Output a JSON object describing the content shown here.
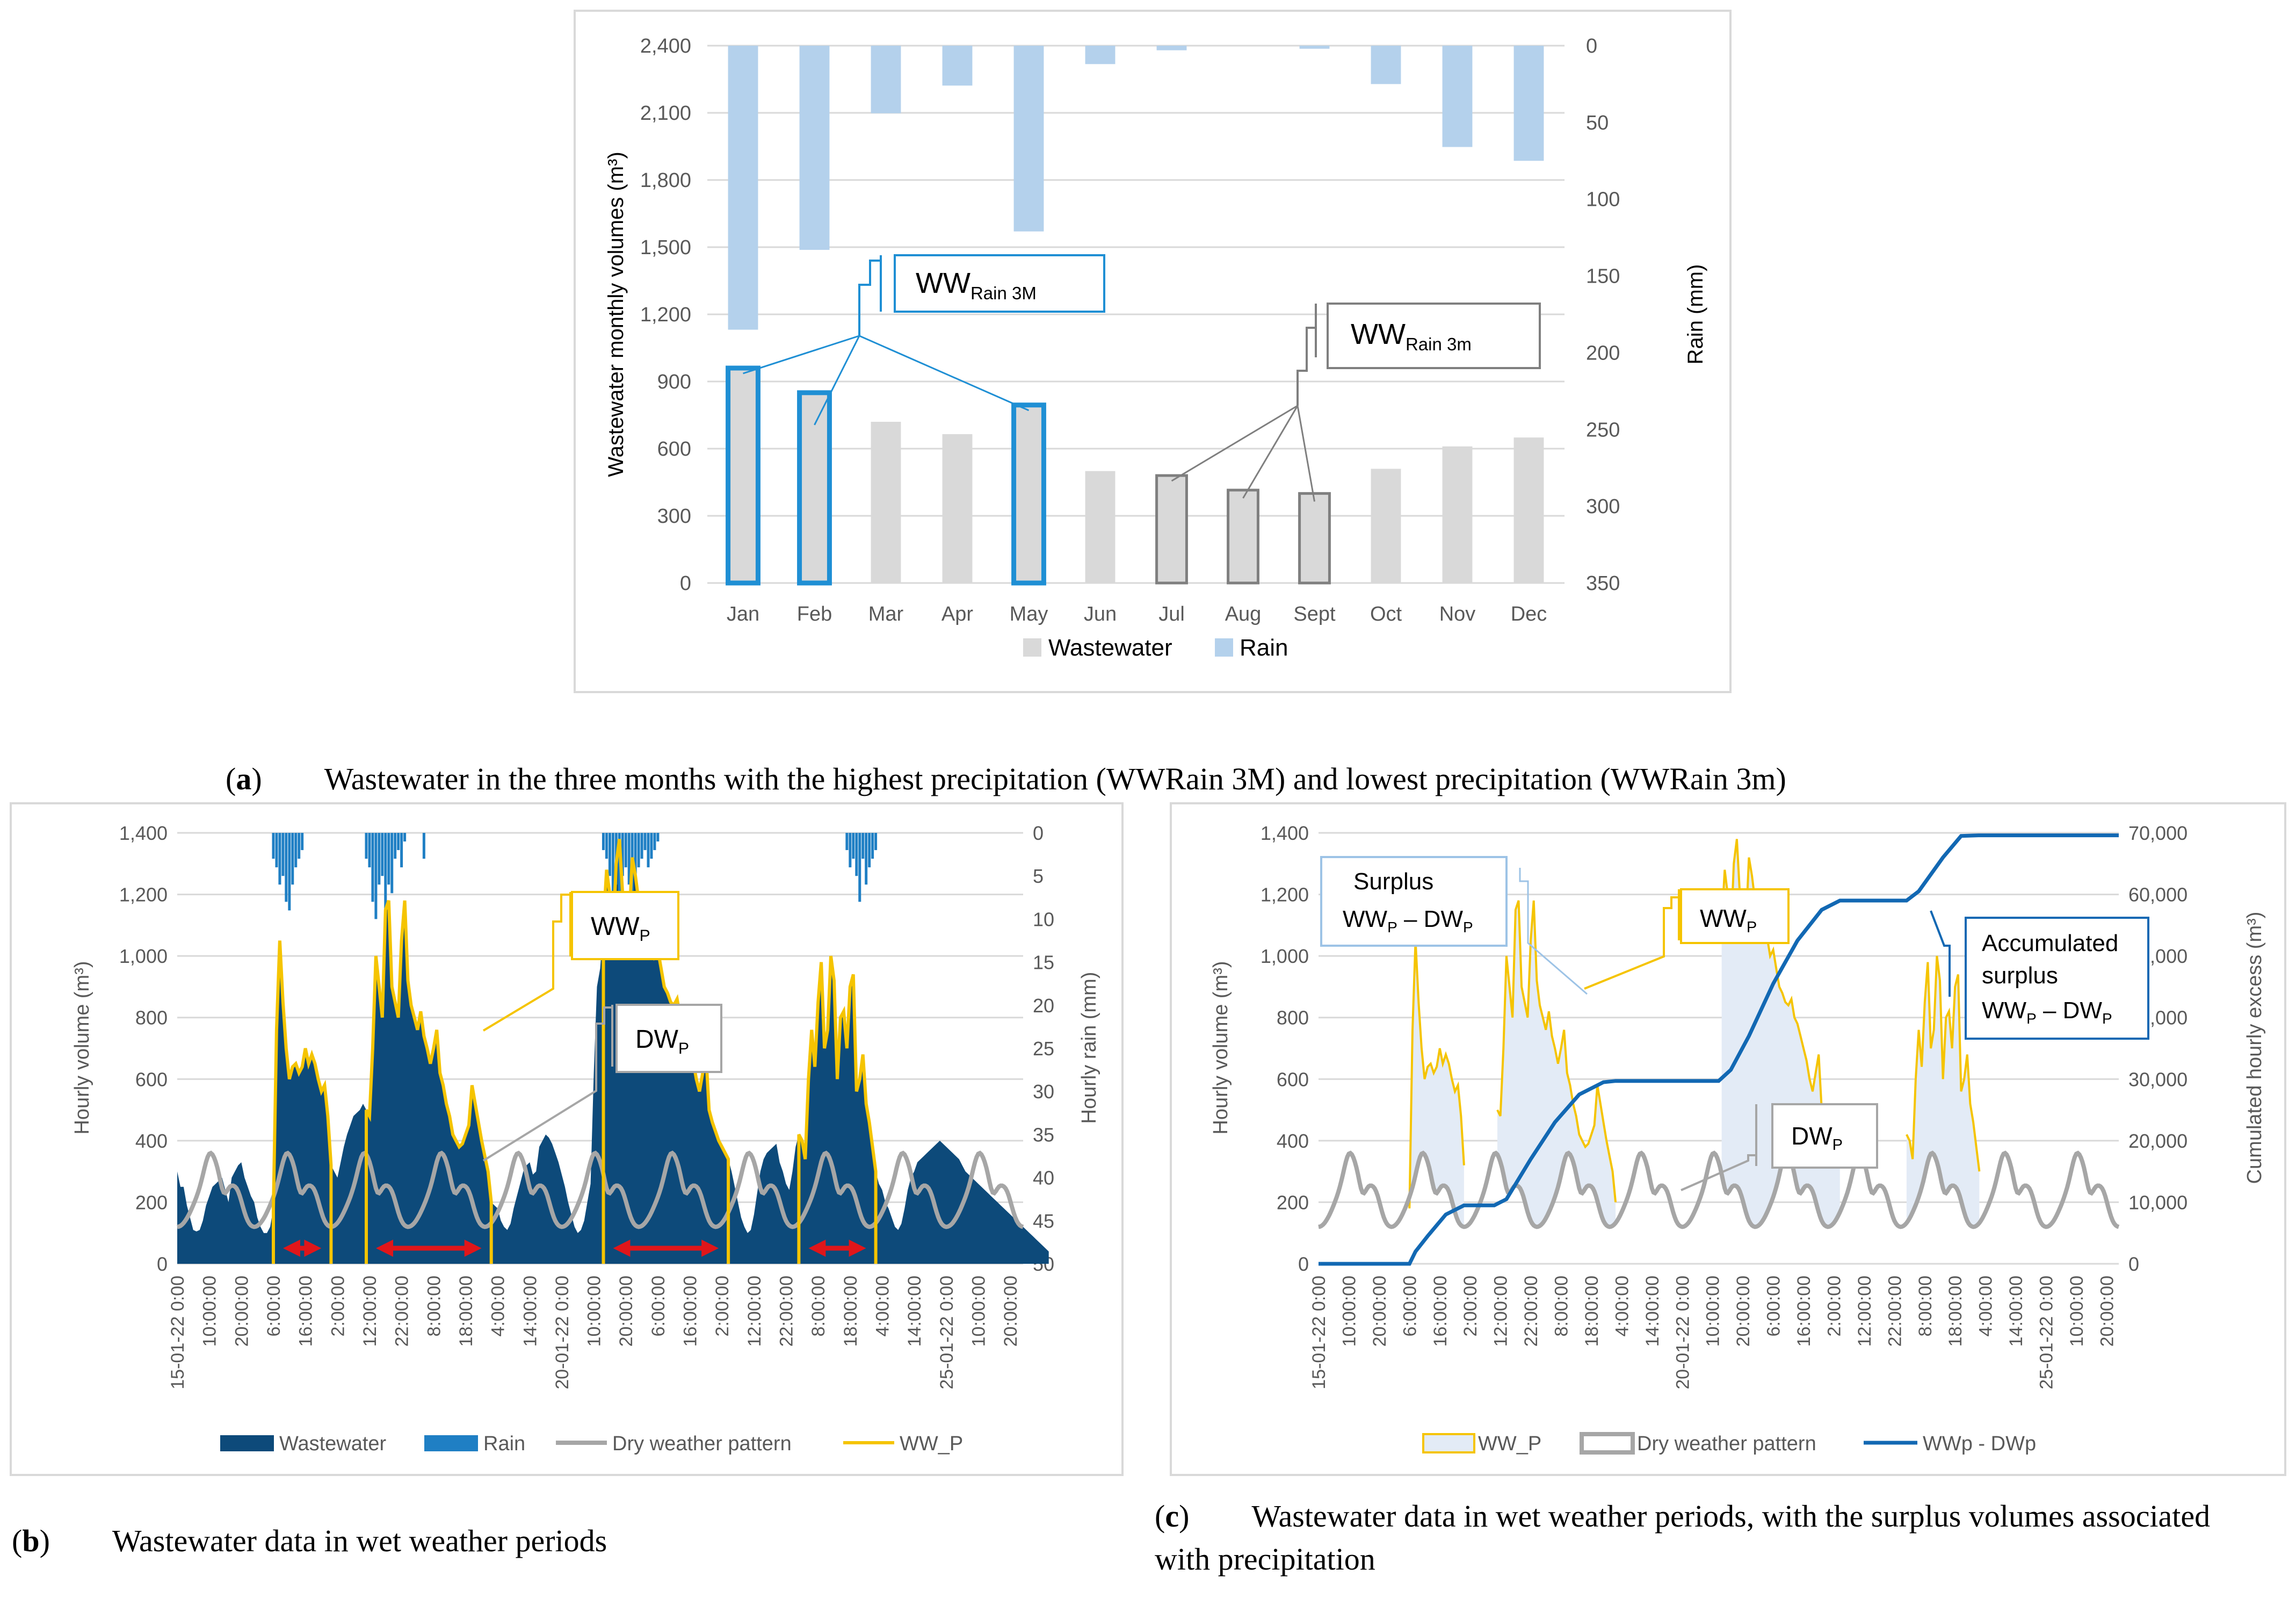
{
  "captions": {
    "a": {
      "letter": "a",
      "text": "Wastewater in the three months with the highest precipitation (WWRain 3M) and lowest precipitation (WWRain 3m)"
    },
    "b": {
      "letter": "b",
      "text": "Wastewater data in wet weather periods"
    },
    "c": {
      "letter": "c",
      "text": "Wastewater data in wet weather periods, with the surplus volumes associated with precipitation"
    }
  },
  "colors": {
    "wastewater_bar": "#d9d9d9",
    "rain_bar": "#b4d1ec",
    "highlight_high": "#1f8fd4",
    "highlight_low": "#7f7f7f",
    "wastewater_area": "#0d4a7a",
    "rain_hourly": "#1f7fc4",
    "dry_weather": "#a6a6a6",
    "ww_p": "#f5c400",
    "surplus_fill": "#e3ebf6",
    "cumulative": "#1268b3",
    "red_arrow": "#e0161a"
  },
  "chart_data": [
    {
      "id": "a",
      "type": "bar",
      "categories": [
        "Jan",
        "Feb",
        "Mar",
        "Apr",
        "May",
        "Jun",
        "Jul",
        "Aug",
        "Sept",
        "Oct",
        "Nov",
        "Dec"
      ],
      "series": [
        {
          "name": "Wastewater",
          "axis": "left",
          "values": [
            960,
            850,
            720,
            665,
            795,
            500,
            480,
            415,
            400,
            510,
            610,
            650
          ]
        },
        {
          "name": "Rain",
          "axis": "right",
          "inverted": true,
          "values": [
            185,
            133,
            44,
            26,
            121,
            12,
            3,
            0,
            2,
            25,
            66,
            75
          ]
        }
      ],
      "ylabel": "Wastewater monthly volumes (m³)",
      "y2label": "Rain (mm)",
      "ylim": [
        0,
        2400
      ],
      "y2lim": [
        350,
        0
      ],
      "yticks": [
        "0",
        "300",
        "600",
        "900",
        "1,200",
        "1,500",
        "1,800",
        "2,100",
        "2,400"
      ],
      "y2ticks": [
        "0",
        "50",
        "100",
        "150",
        "200",
        "250",
        "300",
        "350"
      ],
      "legend": [
        "Wastewater",
        "Rain"
      ],
      "legend_position": "bottom",
      "annotations": {
        "high": {
          "label": "WW",
          "sub": "Rain 3M",
          "months": [
            "Jan",
            "Feb",
            "May"
          ]
        },
        "low": {
          "label": "WW",
          "sub": "Rain 3m",
          "months": [
            "Jul",
            "Aug",
            "Sept"
          ]
        }
      }
    },
    {
      "id": "b",
      "type": "area",
      "ylabel": "Hourly volume (m³)",
      "y2label": "Hourly rain (mm)",
      "ylim": [
        0,
        1400
      ],
      "y2lim": [
        50,
        0
      ],
      "yticks": [
        "0",
        "200",
        "400",
        "600",
        "800",
        "1,000",
        "1,200",
        "1,400"
      ],
      "y2ticks": [
        "0",
        "5",
        "10",
        "15",
        "20",
        "25",
        "30",
        "35",
        "40",
        "45",
        "50"
      ],
      "xticks": [
        "15-01-22 0:00",
        "10:00:00",
        "20:00:00",
        "6:00:00",
        "16:00:00",
        "2:00:00",
        "12:00:00",
        "22:00:00",
        "8:00:00",
        "18:00:00",
        "4:00:00",
        "14:00:00",
        "20-01-22 0:00",
        "10:00:00",
        "20:00:00",
        "6:00:00",
        "16:00:00",
        "2:00:00",
        "12:00:00",
        "22:00:00",
        "8:00:00",
        "18:00:00",
        "4:00:00",
        "14:00:00",
        "25-01-22 0:00",
        "10:00:00",
        "20:00:00"
      ],
      "x_hours": 264,
      "legend": [
        "Wastewater",
        "Rain",
        "Dry weather pattern",
        "WW_P"
      ],
      "legend_position": "bottom",
      "wet_periods_hours": [
        [
          30,
          48
        ],
        [
          59,
          98
        ],
        [
          133,
          172
        ],
        [
          194,
          218
        ]
      ],
      "wastewater_hourly": [
        300,
        250,
        250,
        190,
        150,
        110,
        105,
        110,
        140,
        190,
        220,
        250,
        260,
        270,
        280,
        240,
        200,
        280,
        300,
        320,
        330,
        280,
        250,
        220,
        200,
        150,
        120,
        100,
        100,
        120,
        180,
        760,
        1050,
        850,
        700,
        600,
        640,
        650,
        620,
        640,
        700,
        650,
        680,
        650,
        600,
        560,
        580,
        480,
        320,
        300,
        280,
        330,
        380,
        420,
        450,
        480,
        490,
        500,
        520,
        500,
        480,
        700,
        1000,
        900,
        800,
        1150,
        1180,
        900,
        850,
        800,
        1050,
        1180,
        920,
        840,
        800,
        760,
        820,
        740,
        700,
        650,
        700,
        760,
        620,
        580,
        520,
        480,
        420,
        400,
        380,
        390,
        420,
        450,
        580,
        520,
        460,
        400,
        350,
        300,
        200,
        190,
        180,
        140,
        120,
        110,
        130,
        180,
        220,
        260,
        300,
        320,
        330,
        290,
        300,
        380,
        400,
        420,
        410,
        390,
        360,
        330,
        290,
        250,
        200,
        160,
        120,
        100,
        110,
        140,
        200,
        260,
        620,
        900,
        960,
        1100,
        1280,
        1200,
        1060,
        1300,
        1380,
        1200,
        1150,
        1100,
        1320,
        1260,
        1180,
        1140,
        1120,
        1080,
        1060,
        1000,
        1020,
        960,
        900,
        880,
        850,
        840,
        860,
        800,
        780,
        740,
        700,
        660,
        600,
        560,
        620,
        680,
        500,
        460,
        430,
        400,
        380,
        360,
        340,
        300,
        250,
        200,
        150,
        120,
        100,
        110,
        160,
        230,
        300,
        340,
        360,
        370,
        380,
        390,
        330,
        300,
        260,
        240,
        300,
        380,
        420,
        400,
        340,
        600,
        760,
        640,
        850,
        980,
        700,
        760,
        1000,
        920,
        600,
        800,
        820,
        700,
        900,
        940,
        560,
        600,
        680,
        520,
        460,
        380,
        300,
        260,
        240,
        200,
        180,
        150,
        120,
        110,
        130,
        180,
        240,
        280,
        300,
        330,
        340,
        350,
        360,
        370,
        380,
        390,
        400,
        390,
        380,
        370,
        360,
        350,
        340,
        320,
        300,
        290,
        280,
        270,
        260,
        250,
        240,
        230,
        220,
        210,
        200,
        190,
        180,
        170,
        160,
        150,
        140,
        130,
        120,
        110,
        100,
        90,
        80,
        70,
        60,
        50,
        40
      ],
      "rain_hourly": [
        0,
        0,
        0,
        0,
        0,
        0,
        0,
        0,
        0,
        0,
        0,
        0,
        0,
        0,
        0,
        0,
        0,
        0,
        0,
        0,
        0,
        0,
        0,
        0,
        0,
        0,
        0,
        0,
        0,
        0,
        3,
        4,
        6,
        5,
        8,
        9,
        6,
        4,
        3,
        2,
        0,
        0,
        0,
        0,
        0,
        0,
        0,
        0,
        0,
        0,
        0,
        0,
        0,
        0,
        0,
        0,
        0,
        0,
        0,
        3,
        4,
        8,
        10,
        6,
        5,
        9,
        6,
        7,
        3,
        2,
        4,
        1,
        0,
        0,
        0,
        0,
        0,
        3,
        0,
        0,
        0,
        0,
        0,
        0,
        0,
        0,
        0,
        0,
        0,
        0,
        0,
        0,
        0,
        0,
        0,
        0,
        0,
        0,
        0,
        0,
        0,
        0,
        0,
        0,
        0,
        0,
        0,
        0,
        0,
        0,
        0,
        0,
        0,
        0,
        0,
        0,
        0,
        0,
        0,
        0,
        0,
        0,
        0,
        0,
        0,
        0,
        0,
        0,
        0,
        0,
        0,
        0,
        0,
        2,
        3,
        5,
        7,
        6,
        9,
        5,
        4,
        6,
        7,
        5,
        4,
        3,
        2,
        4,
        3,
        2,
        1,
        0,
        0,
        0,
        0,
        0,
        0,
        0,
        0,
        0,
        0,
        0,
        0,
        0,
        0,
        0,
        0,
        0,
        0,
        0,
        0,
        0,
        0,
        0,
        0,
        0,
        0,
        0,
        0,
        0,
        0,
        0,
        0,
        0,
        0,
        0,
        0,
        0,
        0,
        0,
        0,
        0,
        0,
        0,
        0,
        0,
        0,
        0,
        0,
        0,
        0,
        0,
        0,
        0,
        0,
        0,
        0,
        0,
        0,
        2,
        4,
        3,
        5,
        8,
        3,
        6,
        4,
        3,
        2,
        0,
        0,
        0,
        0,
        0,
        0,
        0,
        0,
        0,
        0,
        0,
        0,
        0,
        0,
        0,
        0,
        0,
        0,
        0,
        0,
        0,
        0,
        0,
        0,
        0,
        0,
        0,
        0,
        0,
        0,
        0,
        0,
        0,
        0,
        0,
        0,
        0,
        0,
        0,
        0,
        0,
        0,
        0,
        0,
        0
      ],
      "annotations": {
        "ww_p": {
          "label": "WW",
          "sub": "P"
        },
        "dw_p": {
          "label": "DW",
          "sub": "P"
        }
      }
    },
    {
      "id": "c",
      "type": "line",
      "ylabel": "Hourly volume (m³)",
      "y2label": "Cumulated hourly excess (m³)",
      "ylim": [
        0,
        1400
      ],
      "y2lim": [
        0,
        70000
      ],
      "yticks": [
        "0",
        "200",
        "400",
        "600",
        "800",
        "1,000",
        "1,200",
        "1,400"
      ],
      "y2ticks": [
        "0",
        "10,000",
        "20,000",
        "30,000",
        "40,000",
        "50,000",
        "60,000",
        "70,000"
      ],
      "xticks": [
        "15-01-22 0:00",
        "10:00:00",
        "20:00:00",
        "6:00:00",
        "16:00:00",
        "2:00:00",
        "12:00:00",
        "22:00:00",
        "8:00:00",
        "18:00:00",
        "4:00:00",
        "14:00:00",
        "20-01-22 0:00",
        "10:00:00",
        "20:00:00",
        "6:00:00",
        "16:00:00",
        "2:00:00",
        "12:00:00",
        "22:00:00",
        "8:00:00",
        "18:00:00",
        "4:00:00",
        "14:00:00",
        "25-01-22 0:00",
        "10:00:00",
        "20:00:00"
      ],
      "x_hours": 264,
      "legend": [
        "WW_P",
        "Dry weather pattern",
        "WWp - DWp"
      ],
      "legend_position": "bottom",
      "cumulative_points": [
        [
          0,
          0
        ],
        [
          30,
          0
        ],
        [
          32,
          2000
        ],
        [
          36,
          4500
        ],
        [
          42,
          8000
        ],
        [
          48,
          9500
        ],
        [
          58,
          9500
        ],
        [
          62,
          10500
        ],
        [
          70,
          17000
        ],
        [
          78,
          23000
        ],
        [
          86,
          27500
        ],
        [
          94,
          29500
        ],
        [
          98,
          29700
        ],
        [
          132,
          29700
        ],
        [
          136,
          31500
        ],
        [
          142,
          37000
        ],
        [
          150,
          45500
        ],
        [
          158,
          52500
        ],
        [
          166,
          57500
        ],
        [
          172,
          59000
        ],
        [
          194,
          59000
        ],
        [
          198,
          60500
        ],
        [
          206,
          66000
        ],
        [
          212,
          69500
        ],
        [
          218,
          69600
        ],
        [
          264,
          69600
        ]
      ],
      "annotations": {
        "surplus": {
          "line1": "Surplus",
          "label": "WW",
          "sub": "P",
          "minus": "DW",
          "sub2": "P"
        },
        "ww_p": {
          "label": "WW",
          "sub": "P"
        },
        "dw_p": {
          "label": "DW",
          "sub": "P"
        },
        "accumulated": {
          "line1": "Accumulated",
          "line2": "surplus",
          "label": "WW",
          "sub": "P",
          "minus": "DW",
          "sub2": "P"
        }
      }
    }
  ]
}
